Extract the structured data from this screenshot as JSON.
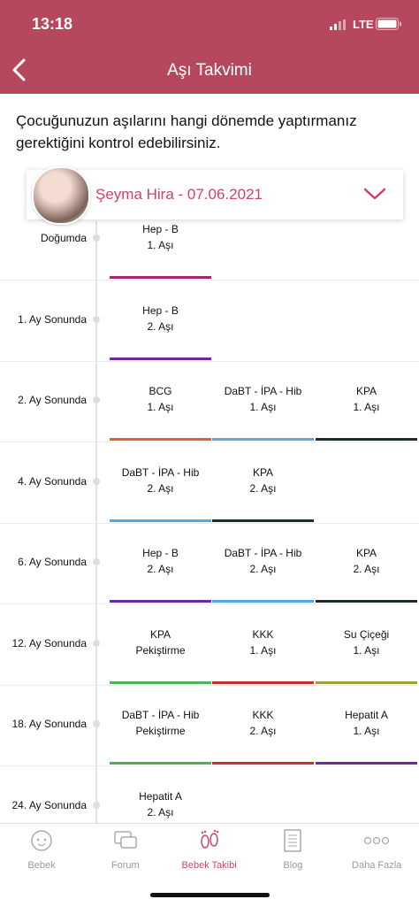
{
  "status": {
    "time": "13:18",
    "network": "LTE"
  },
  "header": {
    "title": "Aşı Takvimi"
  },
  "intro": "Çocuğunuzun aşılarını hangi dönemde yaptırmanız gerektiğini kontrol edebilirsiniz.",
  "profile": {
    "name": "Şeyma Hira - 07.06.2021"
  },
  "schedule": [
    {
      "period": "Doğumda",
      "vaccines": [
        {
          "name": "Hep - B",
          "dose": "1. Aşı",
          "color": "#a3286d"
        }
      ]
    },
    {
      "period": "1. Ay Sonunda",
      "vaccines": [
        {
          "name": "Hep - B",
          "dose": "2. Aşı",
          "color": "#6b2aa0"
        }
      ]
    },
    {
      "period": "2. Ay Sonunda",
      "vaccines": [
        {
          "name": "BCG",
          "dose": "1. Aşı",
          "color": "#e0612c"
        },
        {
          "name": "DaBT - İPA - Hib",
          "dose": "1. Aşı",
          "color": "#5ba7e0"
        },
        {
          "name": "KPA",
          "dose": "1. Aşı",
          "color": "#1c2b2b"
        }
      ]
    },
    {
      "period": "4. Ay Sonunda",
      "vaccines": [
        {
          "name": "DaBT - İPA - Hib",
          "dose": "2. Aşı",
          "color": "#5ba7e0"
        },
        {
          "name": "KPA",
          "dose": "2. Aşı",
          "color": "#1c2b2b"
        }
      ]
    },
    {
      "period": "6. Ay Sonunda",
      "vaccines": [
        {
          "name": "Hep - B",
          "dose": "2. Aşı",
          "color": "#6b2aa0"
        },
        {
          "name": "DaBT - İPA - Hib",
          "dose": "2. Aşı",
          "color": "#5ba7e0"
        },
        {
          "name": "KPA",
          "dose": "2. Aşı",
          "color": "#1c2b2b"
        }
      ]
    },
    {
      "period": "12. Ay Sonunda",
      "vaccines": [
        {
          "name": "KPA",
          "dose": "Pekiştirme",
          "color": "#4cb062"
        },
        {
          "name": "KKK",
          "dose": "1. Aşı",
          "color": "#c3303c"
        },
        {
          "name": "Su Çiçeği",
          "dose": "1. Aşı",
          "color": "#9ba23a"
        }
      ]
    },
    {
      "period": "18. Ay Sonunda",
      "vaccines": [
        {
          "name": "DaBT - İPA - Hib",
          "dose": "Pekiştirme",
          "color": "#4cb062"
        },
        {
          "name": "KKK",
          "dose": "2. Aşı",
          "color": "#c3303c"
        },
        {
          "name": "Hepatit A",
          "dose": "1. Aşı",
          "color": "#6b2aa0"
        }
      ]
    },
    {
      "period": "24. Ay Sonunda",
      "vaccines": [
        {
          "name": "Hepatit A",
          "dose": "2. Aşı",
          "color": "#6b2aa0"
        }
      ]
    }
  ],
  "tabs": [
    "Bebek",
    "Forum",
    "Bebek Takibi",
    "Blog",
    "Daha Fazla"
  ],
  "active_tab": 2
}
